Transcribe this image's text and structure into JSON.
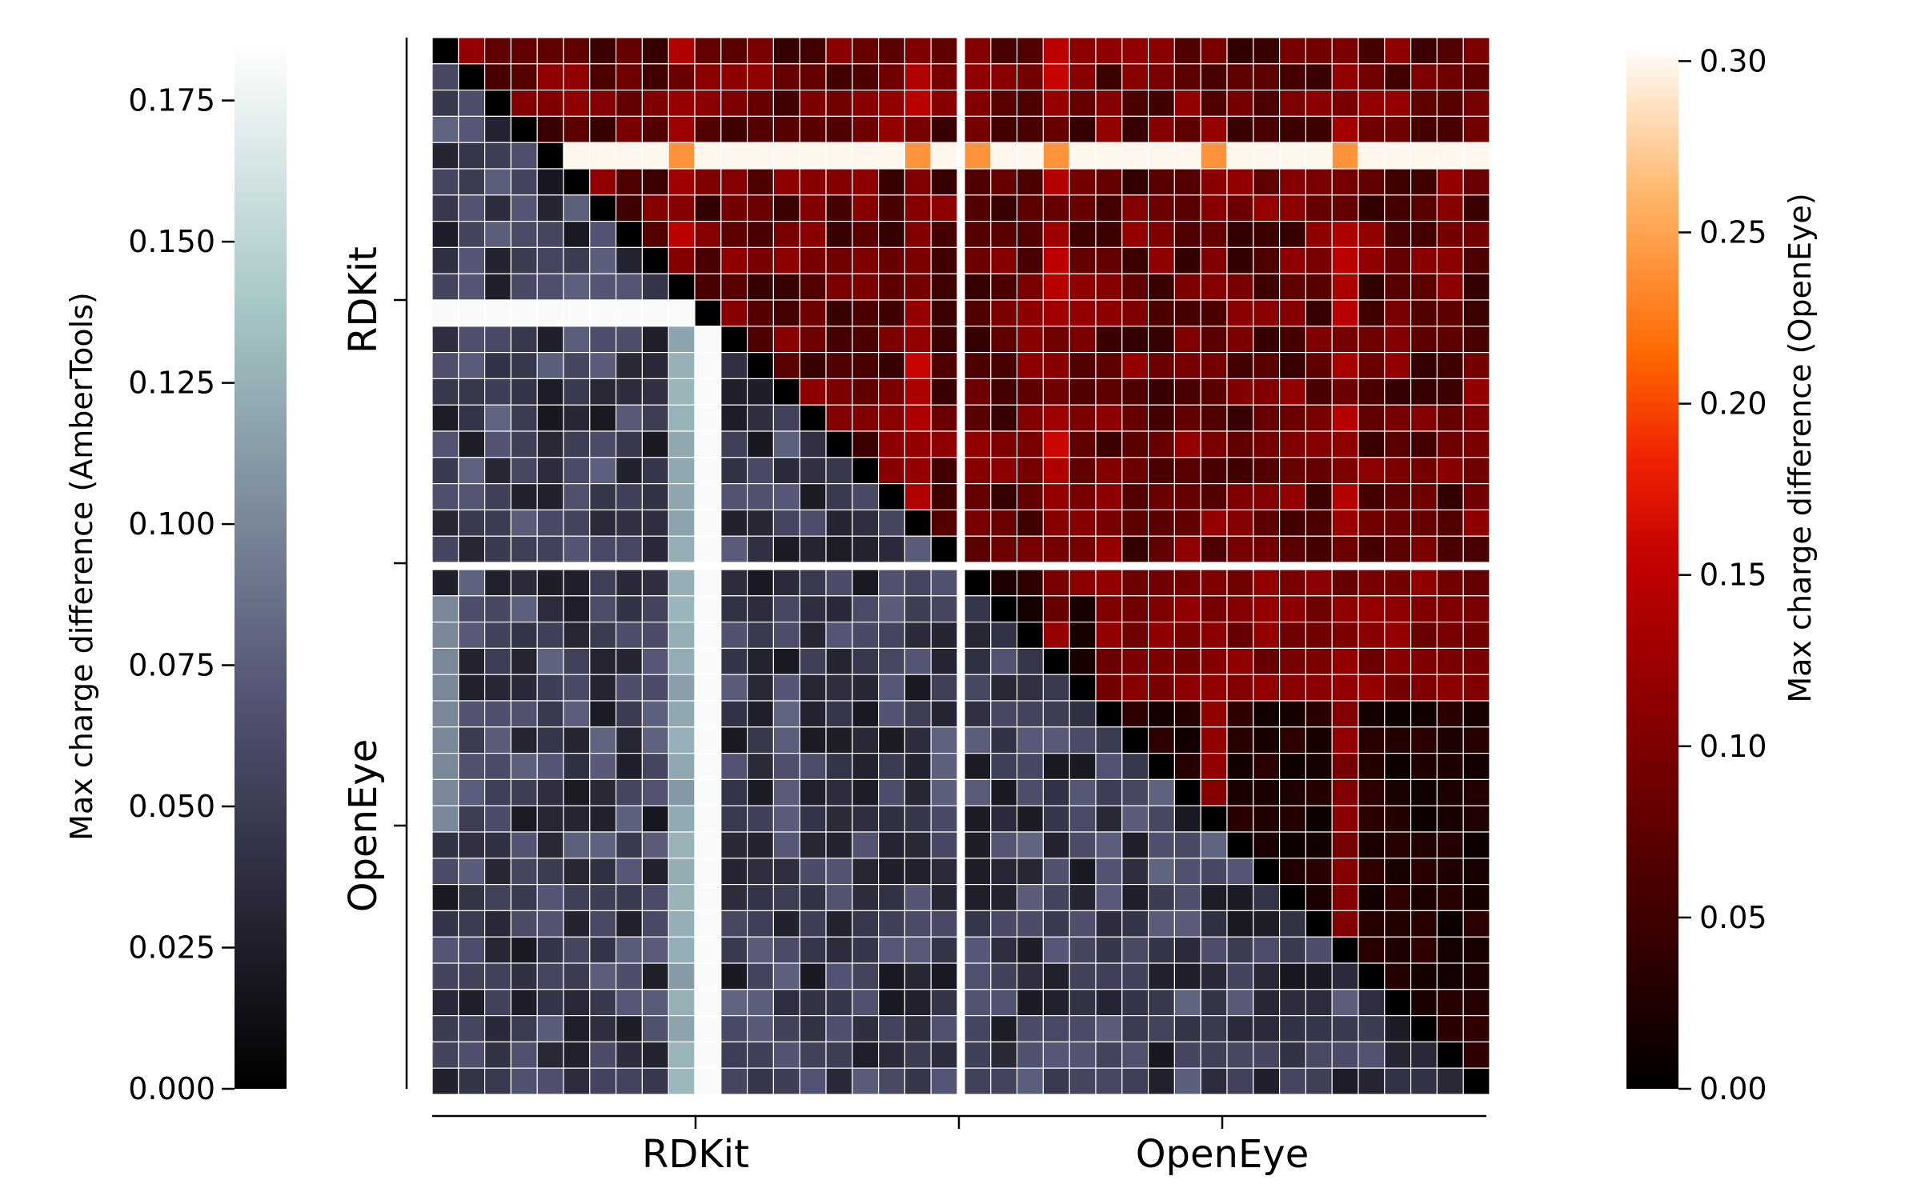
{
  "chart_data": {
    "type": "heatmap",
    "description_groups": [
      "RDKit",
      "OpenEye"
    ],
    "x_group_labels": [
      "RDKit",
      "OpenEye"
    ],
    "y_group_labels": [
      "RDKit",
      "OpenEye"
    ],
    "group_size": 20,
    "lower_triangle": {
      "colorbar_label": "Max charge difference (AmberTools)",
      "colormap": "bone",
      "range": [
        0.0,
        0.185
      ],
      "ticks": [
        "0.000",
        "0.025",
        "0.050",
        "0.075",
        "0.100",
        "0.125",
        "0.150",
        "0.175"
      ],
      "tick_values": [
        0.0,
        0.025,
        0.05,
        0.075,
        0.1,
        0.125,
        0.15,
        0.175
      ],
      "typical_value_range": [
        0.02,
        0.08
      ],
      "outlier_conformer_rdkit_10_value": 0.182
    },
    "upper_triangle": {
      "colorbar_label": "Max charge difference (OpenEye)",
      "colormap": "gist_heat",
      "range": [
        0.0,
        0.305
      ],
      "ticks": [
        "0.00",
        "0.05",
        "0.10",
        "0.15",
        "0.20",
        "0.25",
        "0.30"
      ],
      "tick_values": [
        0.0,
        0.05,
        0.1,
        0.15,
        0.2,
        0.25,
        0.3
      ],
      "typical_value_range": [
        0.02,
        0.12
      ],
      "outlier_conformer_rdkit_4_value": 0.3
    },
    "diagonal_value": 0.0,
    "grid": true,
    "legend": "colorbars left and right"
  }
}
